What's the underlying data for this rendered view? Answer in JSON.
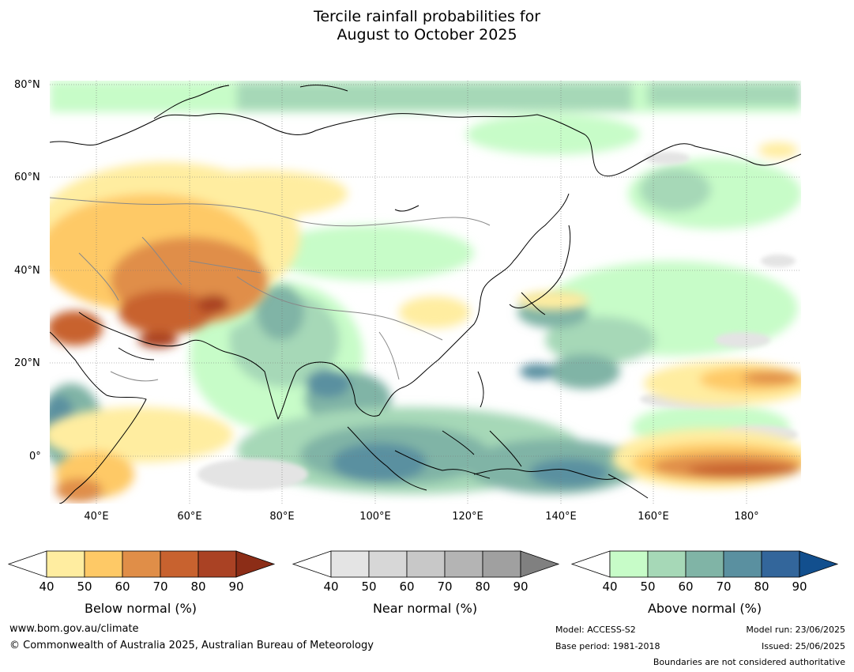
{
  "title": {
    "line1": "Tercile rainfall probabilities for",
    "line2": "August to October 2025"
  },
  "map": {
    "region": "Asia and western Pacific",
    "lat_labels": [
      "80°N",
      "60°N",
      "40°N",
      "20°N",
      "0°"
    ],
    "lon_labels": [
      "40°E",
      "60°E",
      "80°E",
      "100°E",
      "120°E",
      "140°E",
      "160°E",
      "180°"
    ],
    "lat_range": [
      -10,
      81
    ],
    "lon_range": [
      30,
      191
    ]
  },
  "legend": {
    "ticks": [
      "40",
      "50",
      "60",
      "70",
      "80",
      "90"
    ],
    "colorbars": [
      {
        "label": "Below normal (%)",
        "colors": [
          "#ffffff",
          "#ffeda0",
          "#fec966",
          "#e08e48",
          "#c8622f",
          "#aa4224",
          "#8c2d17"
        ]
      },
      {
        "label": "Near normal (%)",
        "colors": [
          "#ffffff",
          "#e4e4e4",
          "#d7d7d7",
          "#c8c8c8",
          "#b4b4b4",
          "#a0a0a0",
          "#808080"
        ]
      },
      {
        "label": "Above normal (%)",
        "colors": [
          "#ffffff",
          "#c7fcc8",
          "#a6d8b7",
          "#80b4a6",
          "#5a90a0",
          "#33669b",
          "#124f8e"
        ]
      }
    ]
  },
  "footer": {
    "website": "www.bom.gov.au/climate",
    "copyright": "© Commonwealth of Australia 2025, Australian Bureau of Meteorology",
    "model": "Model: ACCESS-S2",
    "base_period": "Base period: 1981-2018",
    "model_run": "Model run: 23/06/2025",
    "issued": "Issued: 25/06/2025",
    "disclaimer": "Boundaries are not considered authoritative"
  }
}
